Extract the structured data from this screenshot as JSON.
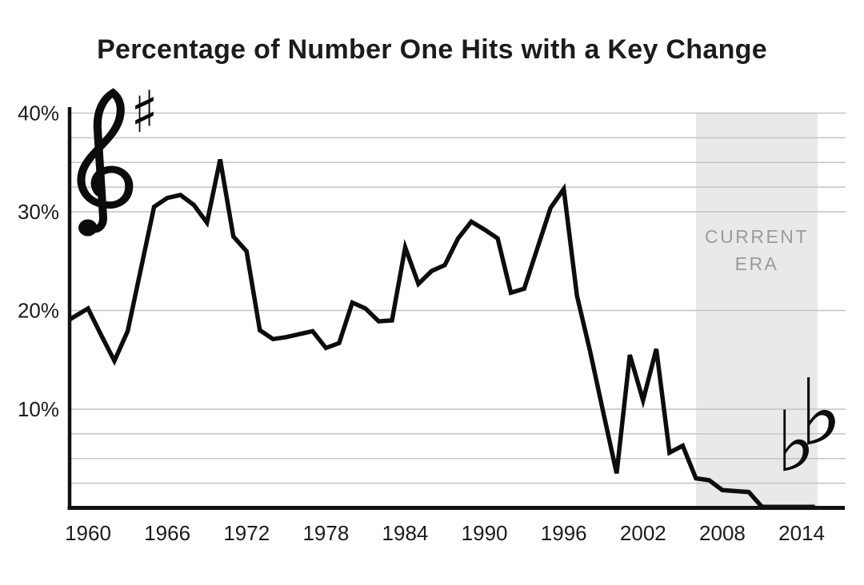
{
  "header": {
    "title": "Percentage of Number One Hits with a Key Change"
  },
  "decorations": {
    "treble_clef_icon": "treble-clef",
    "sharp_glyph": "♯",
    "flat_glyph": "♭"
  },
  "colors": {
    "background": "#ffffff",
    "line": "#0d0d0d",
    "axis": "#111111",
    "gridline": "#c4c4c4",
    "band_fill": "#e9e9e9",
    "band_label": "#9b9b9b",
    "title_text": "#1c1c1c",
    "tick_text": "#1b1b1b"
  },
  "chart_data": {
    "type": "line",
    "title": "Percentage of Number One Hits with a Key Change",
    "x": [
      1958,
      1959,
      1960,
      1961,
      1962,
      1963,
      1964,
      1965,
      1966,
      1967,
      1968,
      1969,
      1970,
      1971,
      1972,
      1973,
      1974,
      1975,
      1976,
      1977,
      1978,
      1979,
      1980,
      1981,
      1982,
      1983,
      1984,
      1985,
      1986,
      1987,
      1988,
      1989,
      1990,
      1991,
      1992,
      1993,
      1994,
      1995,
      1996,
      1997,
      1998,
      1999,
      2000,
      2001,
      2002,
      2003,
      2004,
      2005,
      2006,
      2007,
      2008,
      2009,
      2010,
      2011,
      2012,
      2013,
      2014,
      2015
    ],
    "values": [
      18.6,
      19.4,
      20.2,
      17.5,
      14.9,
      17.9,
      24.2,
      30.5,
      31.4,
      31.7,
      30.7,
      28.9,
      35.3,
      27.5,
      26.0,
      18.0,
      17.1,
      17.3,
      17.6,
      17.9,
      16.2,
      16.7,
      20.8,
      20.2,
      18.9,
      19.0,
      26.4,
      22.7,
      24.0,
      24.6,
      27.3,
      29.0,
      28.2,
      27.3,
      21.8,
      22.2,
      26.3,
      30.4,
      32.3,
      21.5,
      15.8,
      9.6,
      3.5,
      15.5,
      10.9,
      16.1,
      5.6,
      6.3,
      3.0,
      2.8,
      1.8,
      1.7,
      1.6,
      0.1,
      0.1,
      0.1,
      0.1,
      0.1
    ],
    "unit": "%",
    "x_tick_labels": [
      "1960",
      "1966",
      "1972",
      "1978",
      "1984",
      "1990",
      "1996",
      "2002",
      "2008",
      "2014"
    ],
    "x_tick_values": [
      1960,
      1966,
      1972,
      1978,
      1984,
      1990,
      1996,
      2002,
      2008,
      2014
    ],
    "y_ticks": [
      {
        "label": "40%",
        "value": 40
      },
      {
        "label": "30%",
        "value": 30
      },
      {
        "label": "20%",
        "value": 20
      },
      {
        "label": "10%",
        "value": 10
      }
    ],
    "staff_gridline_percents": [
      40,
      37.5,
      35,
      32.5,
      30,
      20,
      10,
      7.5,
      5,
      2.5
    ],
    "xlim": [
      1958.5,
      2015.3
    ],
    "ylim": [
      0,
      41.5
    ],
    "grid": "horizontal-staff-lines",
    "legend": "none",
    "annotation_band": {
      "label_line1": "CURRENT",
      "label_line2": "ERA",
      "start_year": 2006,
      "end_year": 2015
    }
  }
}
